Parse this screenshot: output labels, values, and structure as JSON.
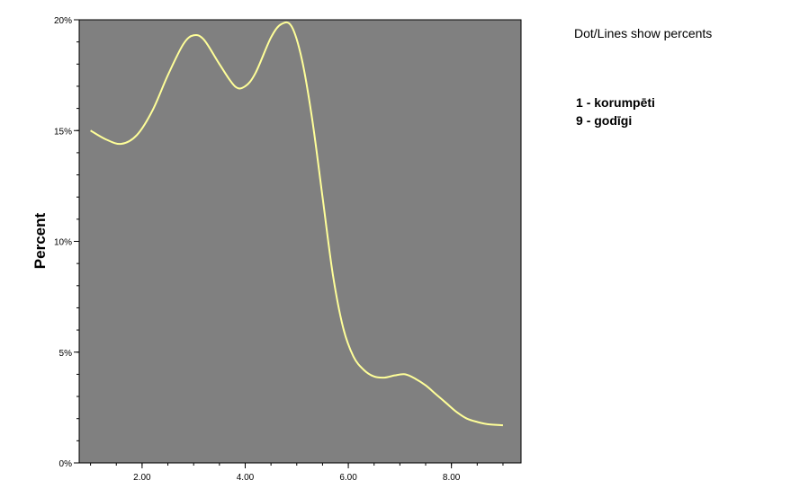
{
  "chart_data": {
    "type": "line",
    "ylabel": "Percent",
    "xlabel": "",
    "xlim": [
      0.78,
      9.35
    ],
    "ylim": [
      0,
      20
    ],
    "y_ticks": [
      {
        "value": 0,
        "label": "0%"
      },
      {
        "value": 5,
        "label": "5%"
      },
      {
        "value": 10,
        "label": "10%"
      },
      {
        "value": 15,
        "label": "15%"
      },
      {
        "value": 20,
        "label": "20%"
      }
    ],
    "x_ticks": [
      {
        "value": 2,
        "label": "2.00"
      },
      {
        "value": 4,
        "label": "4.00"
      },
      {
        "value": 6,
        "label": "6.00"
      },
      {
        "value": 8,
        "label": "8.00"
      }
    ],
    "grid": false,
    "background": "#808080",
    "line_color": "#ffff99",
    "series": [
      {
        "x": [
          1.0,
          1.3,
          1.6,
          1.9,
          2.2,
          2.5,
          2.8,
          3.0,
          3.2,
          3.5,
          3.8,
          4.0,
          4.2,
          4.5,
          4.7,
          4.9,
          5.1,
          5.3,
          5.5,
          5.7,
          5.9,
          6.1,
          6.3,
          6.5,
          6.7,
          6.9,
          7.1,
          7.3,
          7.5,
          7.7,
          7.9,
          8.1,
          8.3,
          8.5,
          8.7,
          9.0
        ],
        "values": [
          15.0,
          14.6,
          14.4,
          14.8,
          15.9,
          17.5,
          18.9,
          19.3,
          19.1,
          18.0,
          17.0,
          17.0,
          17.6,
          19.2,
          19.8,
          19.7,
          18.2,
          15.5,
          12.0,
          8.5,
          6.1,
          4.8,
          4.2,
          3.9,
          3.85,
          3.95,
          4.0,
          3.8,
          3.5,
          3.1,
          2.7,
          2.3,
          2.0,
          1.85,
          1.75,
          1.7
        ]
      }
    ]
  },
  "annotations": {
    "note": "Dot/Lines show percents",
    "legend": [
      {
        "code": "1",
        "text": "- korumpēti"
      },
      {
        "code": "9",
        "text": "- godīgi"
      }
    ]
  }
}
